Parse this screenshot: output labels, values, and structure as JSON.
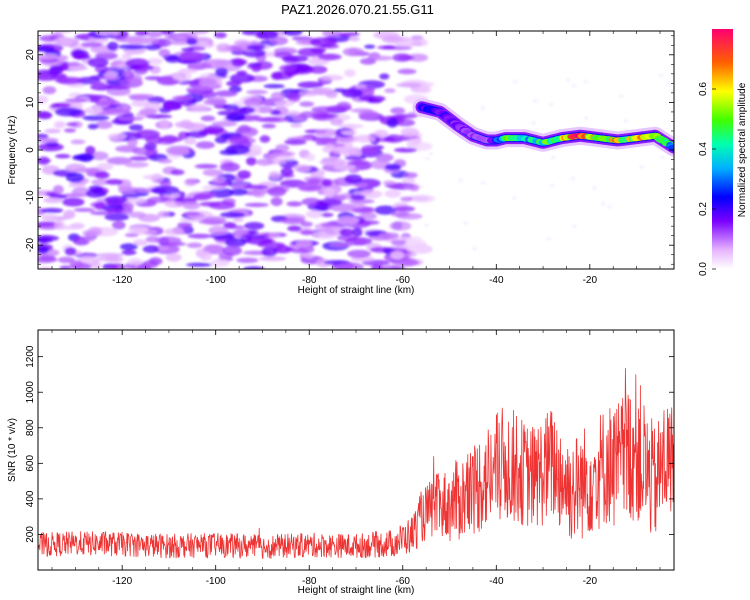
{
  "title": "PAZ1.2026.070.21.55.G11",
  "chart_data": [
    {
      "type": "heatmap",
      "id": "spectrogram",
      "xlabel": "Height of straight line (km)",
      "ylabel": "Frequency (Hz)",
      "xlim": [
        -138,
        -2
      ],
      "ylim": [
        -25,
        25
      ],
      "x_ticks": [
        -120,
        -100,
        -80,
        -60,
        -40,
        -20
      ],
      "x_tick_labels": [
        "-120",
        "-100",
        "-80",
        "-60",
        "-40",
        "-20"
      ],
      "y_ticks": [
        -20,
        -10,
        0,
        10,
        20
      ],
      "y_tick_labels": [
        "-20",
        "-10",
        "0",
        "10",
        "20"
      ],
      "noise_region_x": [
        -138,
        -56
      ],
      "ridge": {
        "x": [
          -56,
          -52,
          -48,
          -45,
          -42,
          -40,
          -38,
          -34,
          -30,
          -26,
          -22,
          -18,
          -14,
          -10,
          -6,
          -2
        ],
        "y": [
          9,
          8,
          5,
          3,
          2,
          2,
          2.5,
          2.5,
          1.5,
          2.5,
          3,
          2.5,
          2,
          2.5,
          3,
          0.5
        ],
        "amplitude": [
          0.22,
          0.18,
          0.15,
          0.12,
          0.12,
          0.18,
          0.5,
          0.35,
          0.45,
          0.55,
          0.72,
          0.5,
          0.6,
          0.52,
          0.7,
          0.3
        ]
      },
      "colorbar": {
        "label": "Normalized spectral amplitude",
        "range": [
          0,
          0.8
        ],
        "ticks": [
          0.0,
          0.2,
          0.4,
          0.6
        ],
        "tick_labels": [
          "0.0",
          "0.2",
          "0.4",
          "0.6"
        ]
      }
    },
    {
      "type": "line",
      "id": "snr",
      "xlabel": "Height of straight line (km)",
      "ylabel": "SNR (10 * v/v)",
      "xlim": [
        -138,
        -2
      ],
      "ylim": [
        0,
        1350
      ],
      "x_ticks": [
        -120,
        -100,
        -80,
        -60,
        -40,
        -20
      ],
      "x_tick_labels": [
        "-120",
        "-100",
        "-80",
        "-60",
        "-40",
        "-20"
      ],
      "y_ticks": [
        200,
        400,
        600,
        800,
        1000,
        1200
      ],
      "y_tick_labels": [
        "200",
        "400",
        "600",
        "800",
        "1000",
        "1200"
      ],
      "series": [
        {
          "name": "SNR",
          "color": "#ee3333",
          "x": [
            -138,
            -130,
            -120,
            -110,
            -100,
            -90,
            -80,
            -70,
            -62,
            -58,
            -56,
            -54,
            -52,
            -50,
            -48,
            -46,
            -44,
            -42,
            -40,
            -38,
            -36,
            -34,
            -32,
            -30,
            -28,
            -26,
            -24,
            -22,
            -20,
            -18,
            -16,
            -14,
            -12,
            -10,
            -8,
            -6,
            -4,
            -2
          ],
          "y": [
            140,
            150,
            145,
            135,
            140,
            130,
            140,
            135,
            150,
            200,
            300,
            340,
            370,
            360,
            400,
            420,
            480,
            520,
            560,
            600,
            580,
            540,
            520,
            560,
            600,
            520,
            450,
            480,
            520,
            560,
            600,
            580,
            640,
            700,
            560,
            480,
            620,
            620
          ],
          "amplitude": [
            70,
            70,
            70,
            70,
            70,
            70,
            70,
            70,
            80,
            110,
            150,
            170,
            190,
            210,
            240,
            260,
            280,
            300,
            330,
            340,
            320,
            300,
            300,
            320,
            330,
            320,
            300,
            320,
            330,
            340,
            350,
            380,
            400,
            420,
            380,
            320,
            360,
            320
          ]
        }
      ]
    }
  ]
}
